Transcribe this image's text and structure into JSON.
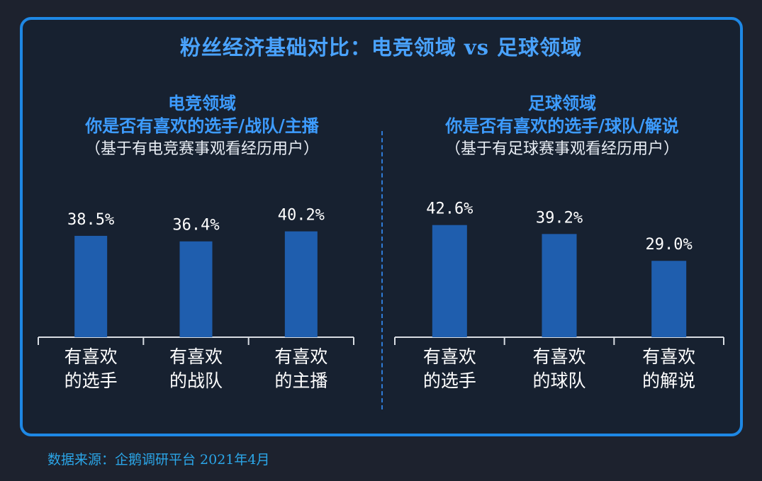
{
  "title": "粉丝经济基础对比：电竞领域 vs 足球领域",
  "source": "数据来源：企鹅调研平台 2021年4月",
  "colors": {
    "bar": "#1f5eae",
    "accent": "#3d9cff",
    "frame": "#1e88e5",
    "text": "#e9eef5"
  },
  "chart_data": [
    {
      "type": "bar",
      "heading": "电竞领域",
      "question": "你是否有喜欢的选手/战队/主播",
      "note": "（基于有电竞赛事观看经历用户）",
      "categories": [
        "有喜欢\n的选手",
        "有喜欢\n的战队",
        "有喜欢\n的主播"
      ],
      "values": [
        38.5,
        36.4,
        40.2
      ],
      "labels": [
        "38.5%",
        "36.4%",
        "40.2%"
      ],
      "ylim": [
        0,
        80
      ],
      "grid": false
    },
    {
      "type": "bar",
      "heading": "足球领域",
      "question": "你是否有喜欢的选手/球队/解说",
      "note": "（基于有足球赛事观看经历用户）",
      "categories": [
        "有喜欢\n的选手",
        "有喜欢\n的球队",
        "有喜欢\n的解说"
      ],
      "values": [
        42.6,
        39.2,
        29.0
      ],
      "labels": [
        "42.6%",
        "39.2%",
        "29.0%"
      ],
      "ylim": [
        0,
        80
      ],
      "grid": false
    }
  ]
}
